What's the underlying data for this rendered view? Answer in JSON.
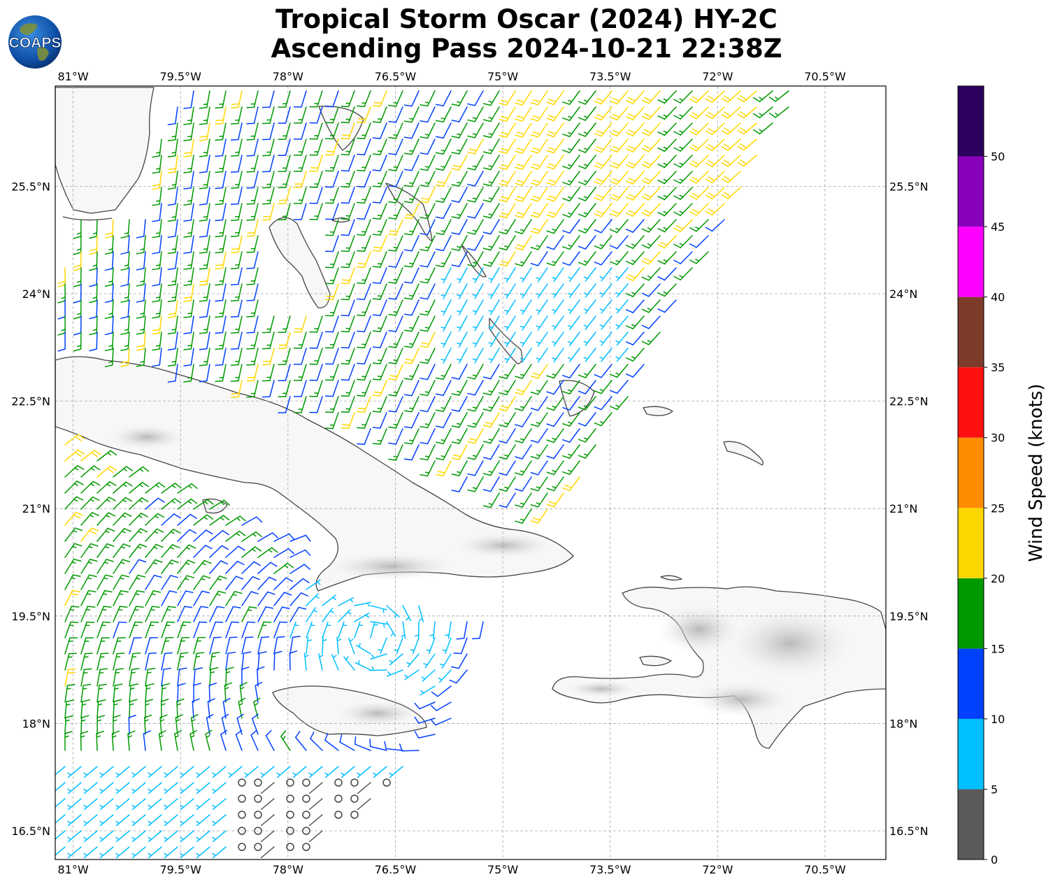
{
  "title": {
    "line1": "Tropical Storm Oscar (2024) HY-2C",
    "line2": "Ascending Pass 2024-10-21 22:38Z"
  },
  "logo": {
    "text": "COAPS"
  },
  "map": {
    "lon_range": [
      -81.25,
      -69.65
    ],
    "lat_range": [
      16.1,
      26.9
    ],
    "lon_ticks": [
      {
        "value": -81,
        "label": "81°W"
      },
      {
        "value": -79.5,
        "label": "79.5°W"
      },
      {
        "value": -78,
        "label": "78°W"
      },
      {
        "value": -76.5,
        "label": "76.5°W"
      },
      {
        "value": -75,
        "label": "75°W"
      },
      {
        "value": -73.5,
        "label": "73.5°W"
      },
      {
        "value": -72,
        "label": "72°W"
      },
      {
        "value": -70.5,
        "label": "70.5°W"
      }
    ],
    "lat_ticks": [
      {
        "value": 25.5,
        "label": "25.5°N"
      },
      {
        "value": 24,
        "label": "24°N"
      },
      {
        "value": 22.5,
        "label": "22.5°N"
      },
      {
        "value": 21,
        "label": "21°N"
      },
      {
        "value": 19.5,
        "label": "19.5°N"
      },
      {
        "value": 18,
        "label": "18°N"
      },
      {
        "value": 16.5,
        "label": "16.5°N"
      }
    ],
    "gridlines": true,
    "storm_center": {
      "lon": -76.8,
      "lat": 19.2
    }
  },
  "colorbar": {
    "label": "Wind Speed (knots)",
    "ticks": [
      0,
      5,
      10,
      15,
      20,
      25,
      30,
      35,
      40,
      45,
      50
    ],
    "colors": [
      "#5a5a5a",
      "#00bfff",
      "#0040ff",
      "#009900",
      "#ffd700",
      "#ff8c00",
      "#ff1010",
      "#7f3b2a",
      "#ff00ff",
      "#8800bb",
      "#2c005e"
    ],
    "max": 55
  }
}
